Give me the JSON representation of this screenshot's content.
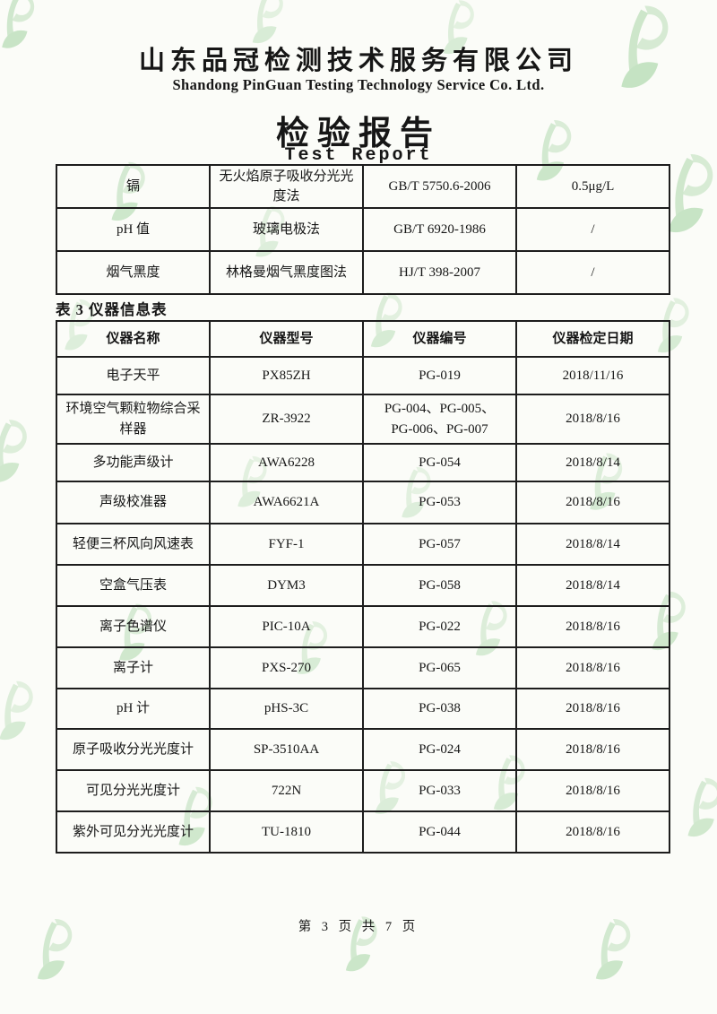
{
  "page": {
    "company_cn": "山东品冠检测技术服务有限公司",
    "company_en": "Shandong PinGuan Testing Technology Service Co. Ltd.",
    "title_cn": "检验报告",
    "title_en": "Test Report",
    "footer": "第 3 页 共 7 页"
  },
  "watermark": {
    "icon": "pinguan-leaf-logo",
    "color_light": "#b3dab0",
    "color_mid": "#9ccf9a",
    "color_leaf": "#8bc98a"
  },
  "table1": {
    "rows": [
      {
        "item": "镉",
        "method": "无火焰原子吸收分光光度法",
        "standard": "GB/T 5750.6-2006",
        "limit": "0.5μg/L"
      },
      {
        "item": "pH 值",
        "method": "玻璃电极法",
        "standard": "GB/T 6920-1986",
        "limit": "/"
      },
      {
        "item": "烟气黑度",
        "method": "林格曼烟气黑度图法",
        "standard": "HJ/T 398-2007",
        "limit": "/"
      }
    ]
  },
  "table2": {
    "caption": "表 3 仪器信息表",
    "headers": [
      "仪器名称",
      "仪器型号",
      "仪器编号",
      "仪器检定日期"
    ],
    "rows": [
      [
        "电子天平",
        "PX85ZH",
        "PG-019",
        "2018/11/16"
      ],
      [
        "环境空气颗粒物综合采样器",
        "ZR-3922",
        "PG-004、PG-005、\nPG-006、PG-007",
        "2018/8/16"
      ],
      [
        "多功能声级计",
        "AWA6228",
        "PG-054",
        "2018/8/14"
      ],
      [
        "声级校准器",
        "AWA6621A",
        "PG-053",
        "2018/8/16"
      ],
      [
        "轻便三杯风向风速表",
        "FYF-1",
        "PG-057",
        "2018/8/14"
      ],
      [
        "空盒气压表",
        "DYM3",
        "PG-058",
        "2018/8/14"
      ],
      [
        "离子色谱仪",
        "PIC-10A",
        "PG-022",
        "2018/8/16"
      ],
      [
        "离子计",
        "PXS-270",
        "PG-065",
        "2018/8/16"
      ],
      [
        "pH 计",
        "pHS-3C",
        "PG-038",
        "2018/8/16"
      ],
      [
        "原子吸收分光光度计",
        "SP-3510AA",
        "PG-024",
        "2018/8/16"
      ],
      [
        "可见分光光度计",
        "722N",
        "PG-033",
        "2018/8/16"
      ],
      [
        "紫外可见分光光度计",
        "TU-1810",
        "PG-044",
        "2018/8/16"
      ]
    ]
  }
}
